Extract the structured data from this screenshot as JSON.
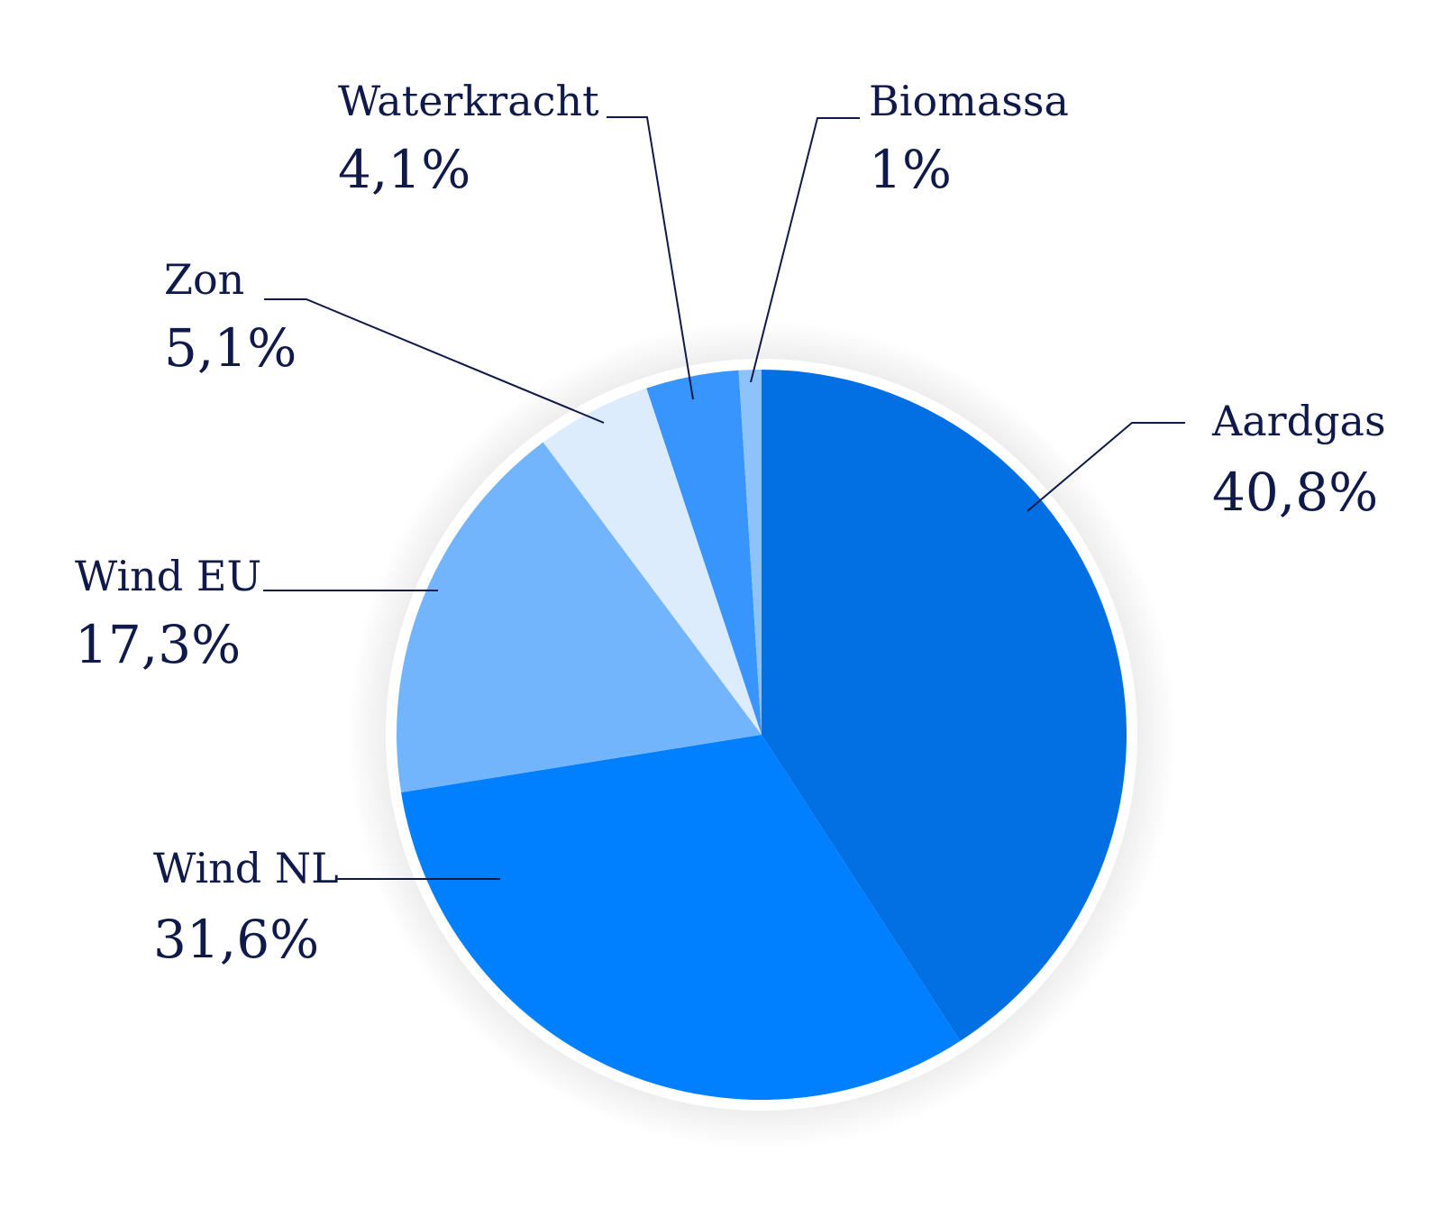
{
  "chart_data": {
    "type": "pie",
    "title": "",
    "slices": [
      {
        "label": "Aardgas",
        "value": 40.8,
        "display": "40,8%",
        "color": "#026fe3"
      },
      {
        "label": "Wind NL",
        "value": 31.6,
        "display": "31,6%",
        "color": "#007ffe"
      },
      {
        "label": "Wind EU",
        "value": 17.3,
        "display": "17,3%",
        "color": "#73b5fd"
      },
      {
        "label": "Zon",
        "value": 5.1,
        "display": "5,1%",
        "color": "#dcecfd"
      },
      {
        "label": "Waterkracht",
        "value": 4.1,
        "display": "4,1%",
        "color": "#3895fd"
      },
      {
        "label": "Biomassa",
        "value": 1.0,
        "display": "1%",
        "color": "#8ec2fb"
      }
    ],
    "start": "top",
    "direction": "clockwise",
    "legend": "none",
    "labels": "outside with leader lines"
  },
  "colors": {
    "text": "#0f1a4a",
    "leader": "#0f1a4a",
    "ring": "#ffffff"
  }
}
